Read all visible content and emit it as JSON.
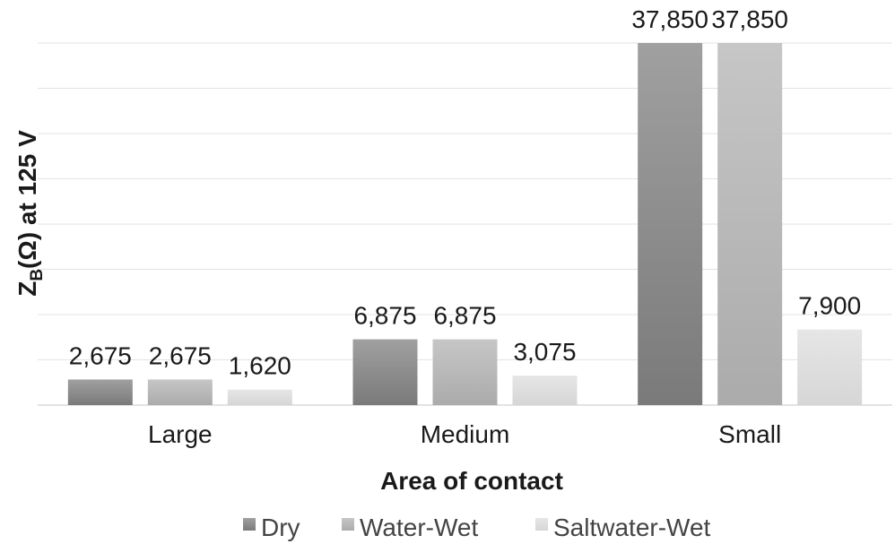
{
  "chart_data": {
    "type": "bar",
    "categories": [
      "Large",
      "Medium",
      "Small"
    ],
    "series": [
      {
        "name": "Dry",
        "values": [
          2675,
          6875,
          37850
        ],
        "labels": [
          "2,675",
          "6,875",
          "37,850"
        ],
        "color": "#8a8a8a"
      },
      {
        "name": "Water-Wet",
        "values": [
          2675,
          6875,
          37850
        ],
        "labels": [
          "2,675",
          "6,875",
          "37,850"
        ],
        "color": "#b8b8b8"
      },
      {
        "name": "Saltwater-Wet",
        "values": [
          1620,
          3075,
          7900
        ],
        "labels": [
          "1,620",
          "3,075",
          "7,900"
        ],
        "color": "#dedede"
      }
    ],
    "xlabel": "Area of contact",
    "ylabel_main": "Z",
    "ylabel_sub": "B",
    "ylabel_rest": "(Ω) at 125 V",
    "ylim": [
      0,
      37850
    ],
    "y_gridlines": 8,
    "show_y_tick_labels": false,
    "grid": true,
    "legend": "bottom"
  }
}
